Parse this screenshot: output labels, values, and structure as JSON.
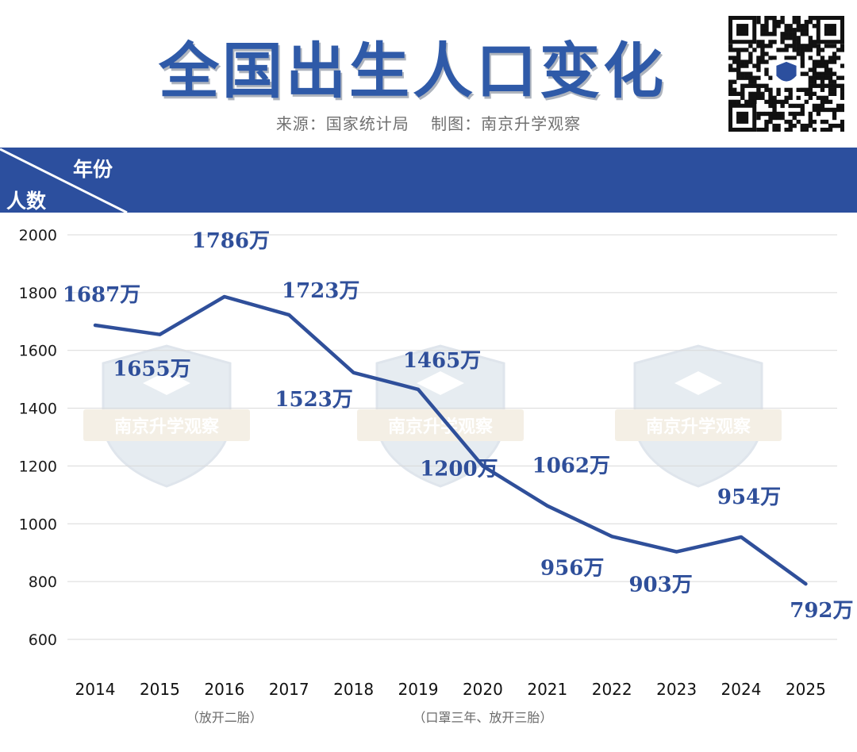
{
  "header": {
    "title": "全国出生人口变化",
    "source": "来源：国家统计局",
    "maker": "制图：南京升学观察",
    "corner_x_label": "年份",
    "corner_y_label": "人数"
  },
  "watermark": {
    "text": "南京升学观察",
    "icon": "shield-graduation-cap-icon"
  },
  "colors": {
    "accent": "#2c4f9e",
    "line": "#2f4f9a",
    "title": "#2f5aa8"
  },
  "annotations": [
    {
      "text": "（放开二胎）",
      "category": "2016"
    },
    {
      "text": "（口罩三年、放开三胎）",
      "category": "2020"
    }
  ],
  "chart_data": {
    "type": "line",
    "title": "全国出生人口变化",
    "xlabel": "年份",
    "ylabel": "人数",
    "categories": [
      "2014",
      "2015",
      "2016",
      "2017",
      "2018",
      "2019",
      "2020",
      "2021",
      "2022",
      "2023",
      "2024",
      "2025"
    ],
    "values": [
      1687,
      1655,
      1786,
      1723,
      1523,
      1465,
      1200,
      1062,
      956,
      903,
      954,
      792
    ],
    "data_labels": [
      "1687万",
      "1655万",
      "1786万",
      "1723万",
      "1523万",
      "1465万",
      "1200万",
      "1062万",
      "956万",
      "903万",
      "954万",
      "792万"
    ],
    "ylim": [
      600,
      2000
    ],
    "yticks": [
      "2000",
      "1800",
      "1600",
      "1400",
      "1200",
      "1000",
      "800",
      "600"
    ],
    "grid": true,
    "legend": "none"
  }
}
